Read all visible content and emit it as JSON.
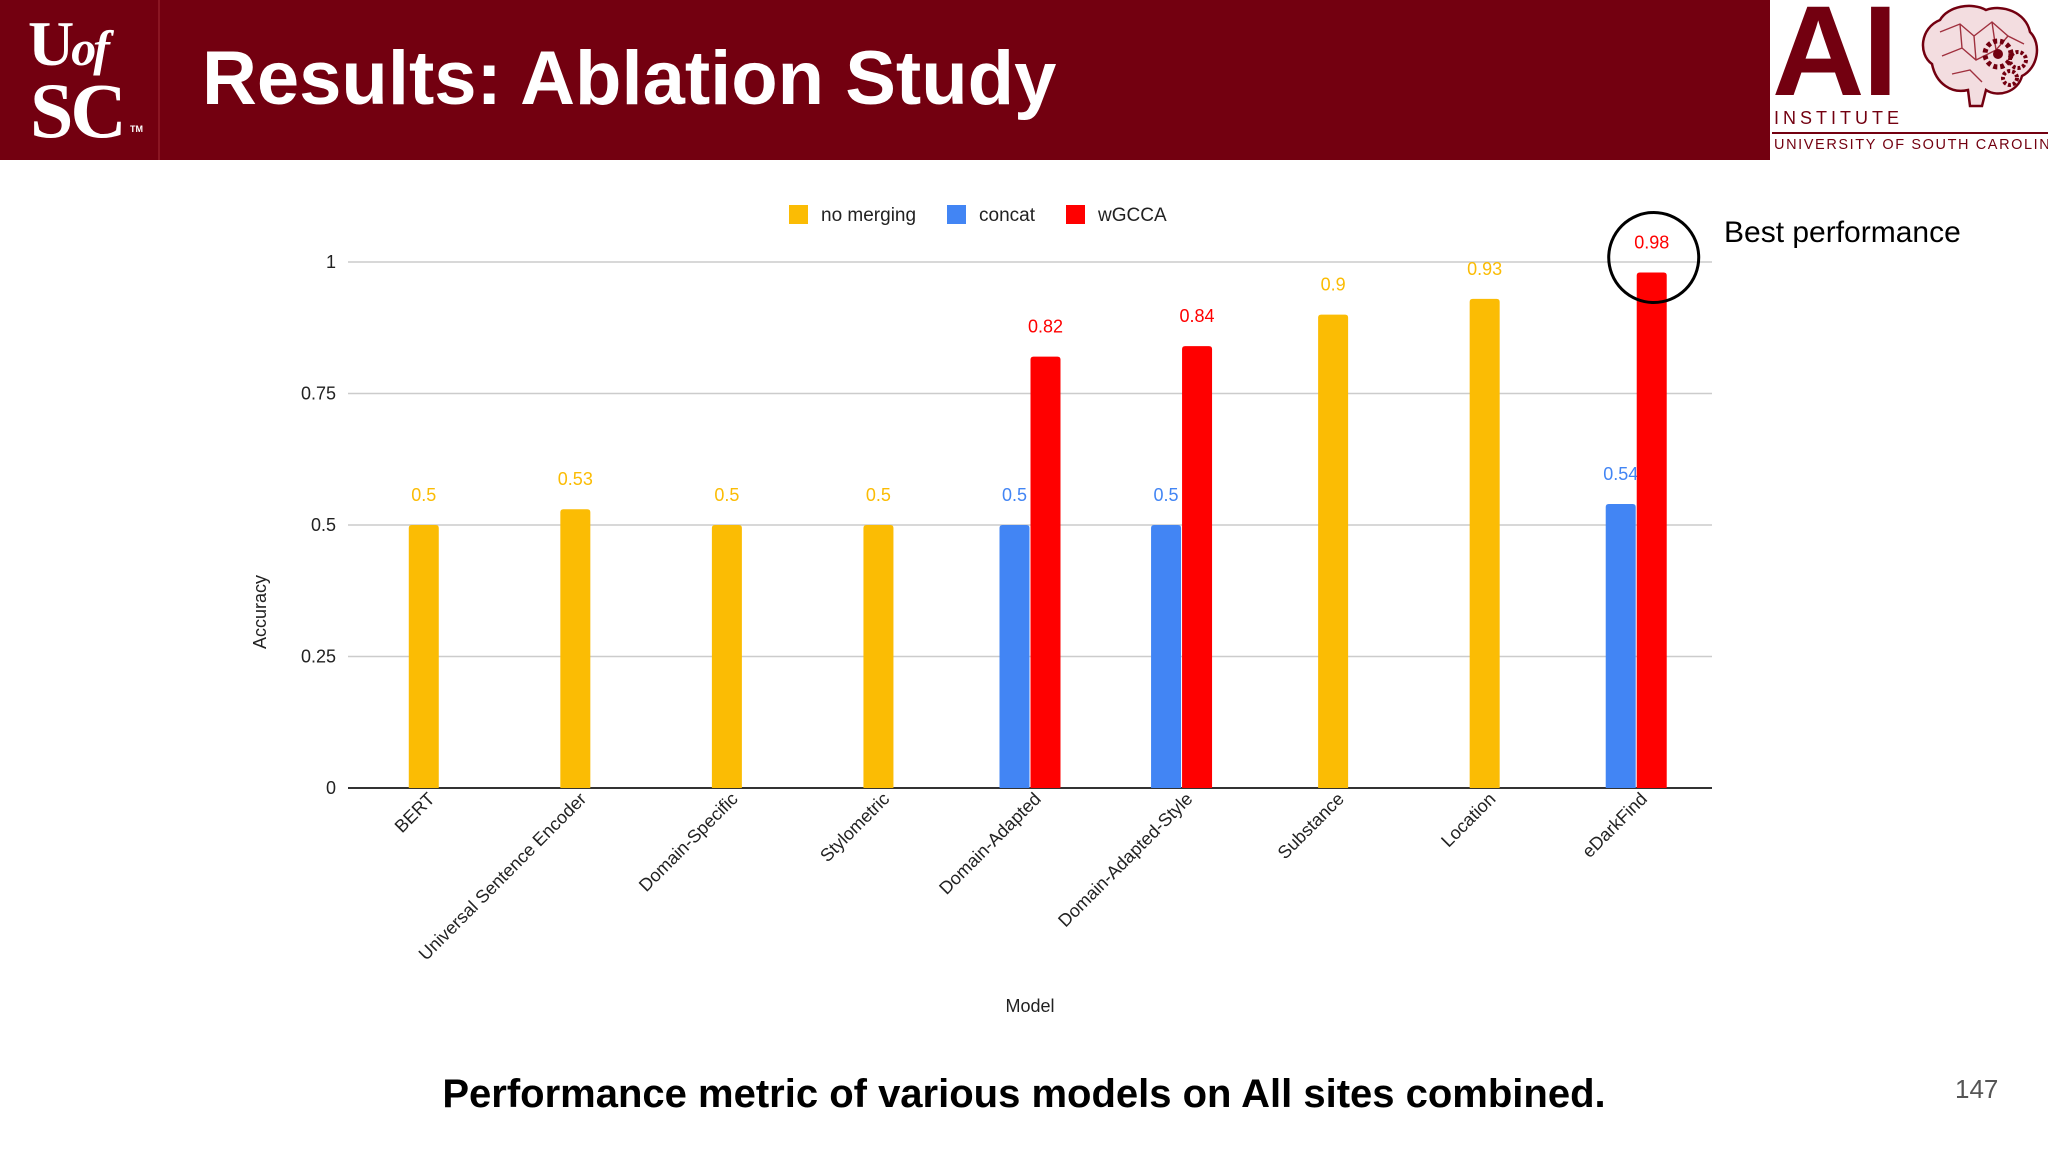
{
  "header": {
    "logo_left_line1": "U",
    "logo_left_of": "of",
    "logo_left_line2": "SC",
    "logo_left_tm": "TM",
    "title": "Results: Ablation Study",
    "logo_right_main": "AI",
    "logo_right_institute": "INSTITUTE",
    "logo_right_university": "UNIVERSITY OF SOUTH CAROLINA"
  },
  "colors": {
    "header_bg": "#730010",
    "no_merging": "#FBBC04",
    "concat": "#4285F4",
    "wgcca": "#FF0000"
  },
  "annotation": {
    "text": "Best performance"
  },
  "caption": "Performance metric of various models on All sites combined.",
  "page_number": "147",
  "chart_data": {
    "type": "bar",
    "title": "",
    "xlabel": "Model",
    "ylabel": "Accuracy",
    "ylim": [
      0,
      1
    ],
    "yticks": [
      0,
      0.25,
      0.5,
      0.75,
      1
    ],
    "ytick_labels": [
      "0",
      "0.25",
      "0.5",
      "0.75",
      "1"
    ],
    "grid": true,
    "legend_position": "top",
    "categories": [
      "BERT",
      "Universal Sentence Encoder",
      "Domain-Specific",
      "Stylometric",
      "Domain-Adapted",
      "Domain-Adapted-Style",
      "Substance",
      "Location",
      "eDarkFind"
    ],
    "series": [
      {
        "name": "no merging",
        "color": "#FBBC04",
        "values": [
          0.5,
          0.53,
          0.5,
          0.5,
          null,
          null,
          0.9,
          0.93,
          null
        ]
      },
      {
        "name": "concat",
        "color": "#4285F4",
        "values": [
          null,
          null,
          null,
          null,
          0.5,
          0.5,
          null,
          null,
          0.54
        ]
      },
      {
        "name": "wGCCA",
        "color": "#FF0000",
        "values": [
          null,
          null,
          null,
          null,
          0.82,
          0.84,
          null,
          null,
          0.98
        ]
      }
    ],
    "highlight": {
      "category": "eDarkFind",
      "series": "wGCCA"
    }
  }
}
